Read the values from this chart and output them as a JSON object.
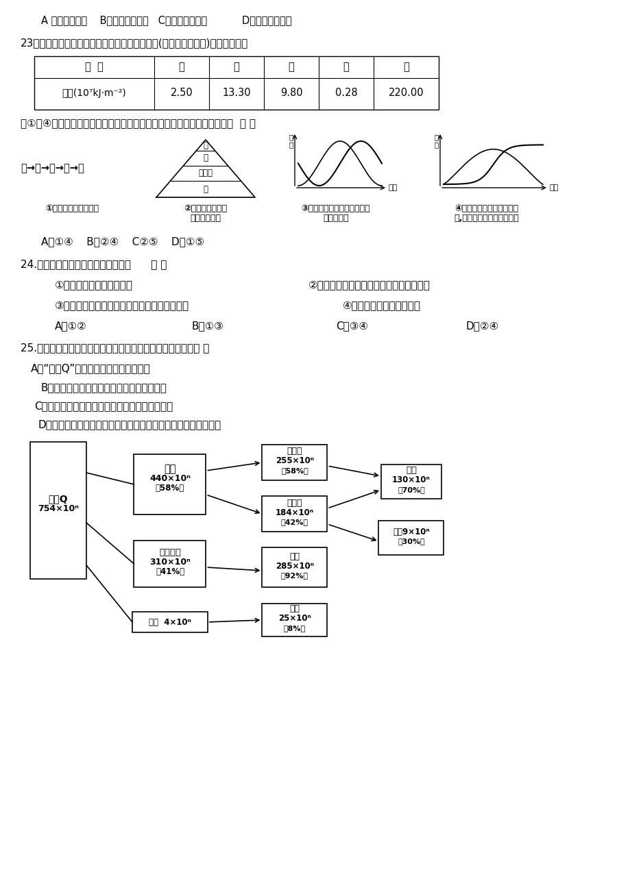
{
  "bg_color": "#ffffff",
  "page_width": 9.2,
  "page_height": 13.02,
  "top_options": "A 直接使用价值    B．间接使用价值   C．潜在使用价值           D．经济使用价值",
  "q23_text": "23、下表是一种相对封闭的生态系统中五个种群(存在着营养关系)的能量调查：",
  "table_headers": [
    "种  群",
    "甲",
    "乙",
    "丙",
    "丁",
    "戊"
  ],
  "table_row_label": "能量(10⁷kJ·m⁻²)",
  "table_values": [
    "2.50",
    "13.30",
    "9.80",
    "0.28",
    "220.00"
  ],
  "q23_sub": "图①～④是根据该表数据作出的某些分析，其中不能与表中数据相符合的是  （ ）",
  "fig1_label": "戊→乙→丙→甲→丁",
  "fig1_caption": "①该生态系统的食物链",
  "fig2_caption_1": "②生态系统的能量",
  "fig2_caption_2": "金字塔示意图",
  "fig3_caption_1": "③该生态系统中乙与丙可能的",
  "fig3_caption_2": "关系示意图",
  "fig4_caption_1": "④该生态系统中除去甲和丁",
  "fig4_caption_2": "后,乙与丙可能的关系示意图",
  "q23_answer": "A．①④    B．②④    C②⑤    D．①⑤",
  "q24_text": "24.下列有关碳循环的论述中对的的是      （ ）",
  "q24_opt1": "①全过程在生物群落中进行",
  "q24_opt2": "②碳元素只能以光合伙用方式进入生物群落",
  "q24_opt3": "③生物群落的碳元素通过呼吸作用回归无机环境",
  "q24_opt4": "④随着着能量的变化而变化",
  "q24_answer_a": "A．①②",
  "q24_answer_b": "B．①③",
  "q24_answer_c": "C．③④",
  "q24_answer_d": "D．②④",
  "q25_text": "25.下图为某人工松林间的能量流动状况，有关说法错误的是（ ）",
  "q25_optA": "A．“能量Q”指生产者固定的太阳能总量",
  "q25_optB": "B．该松林中消费者占有的总能量的比例很小",
  "q25_optC": "C．人工松林的营养构造简朴，恢复力稳定性较高",
  "q25_optD": "D．该松林的抗御力稳定性比较低，容易导致单一虫害的爆发流行"
}
